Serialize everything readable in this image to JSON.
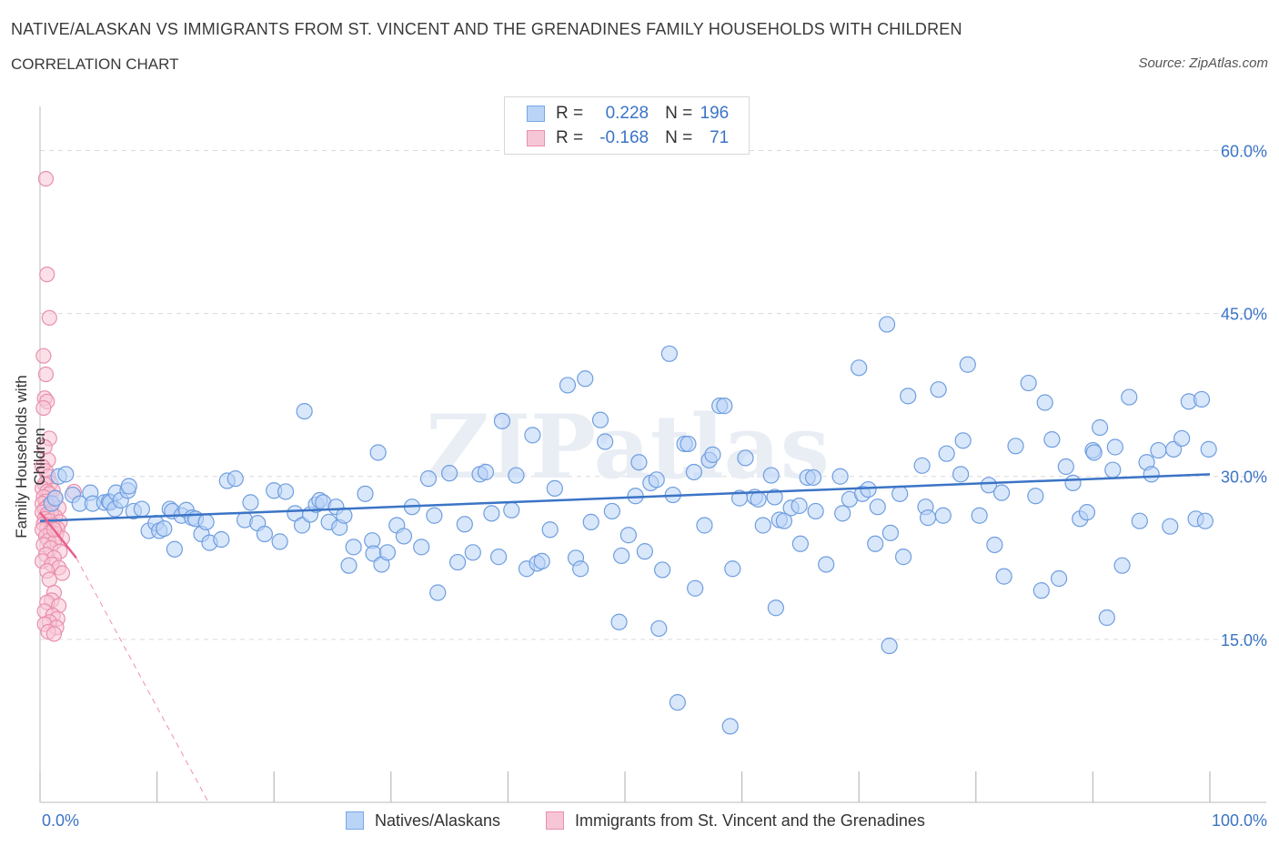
{
  "title": "NATIVE/ALASKAN VS IMMIGRANTS FROM ST. VINCENT AND THE GRENADINES FAMILY HOUSEHOLDS WITH CHILDREN",
  "subtitle": "CORRELATION CHART",
  "source": "Source: ZipAtlas.com",
  "watermark": "ZIPatlas",
  "legend_top": [
    {
      "r_label": "R =",
      "r_value": "0.228",
      "n_label": "N =",
      "n_value": "196",
      "color": "#b9d4f7",
      "border": "#7aa7e6"
    },
    {
      "r_label": "R =",
      "r_value": "-0.168",
      "n_label": "N =",
      "n_value": "71",
      "color": "#f7c6d6",
      "border": "#e98fae"
    }
  ],
  "legend_bottom": [
    "Natives/Alaskans",
    "Immigrants from St. Vincent and the Grenadines"
  ],
  "chart_data": {
    "type": "scatter",
    "ylabel": "Family Households with Children",
    "xlabel": "",
    "xlim": [
      0,
      100
    ],
    "ylim": [
      0,
      60
    ],
    "x_tick_labels": [
      "0.0%",
      "100.0%"
    ],
    "y_tick_labels": [
      "15.0%",
      "30.0%",
      "45.0%",
      "60.0%"
    ],
    "y_ticks": [
      15,
      30,
      45,
      60
    ],
    "colors": {
      "blue": "#3b74c6",
      "blue_fill": "#b9d4f7",
      "pink": "#e8608c",
      "pink_fill": "#f7c6d6",
      "grid": "#d9d9d9"
    },
    "series": [
      {
        "name": "Natives/Alaskans",
        "trend": {
          "x": [
            0,
            100
          ],
          "y": [
            25.9,
            30.2
          ]
        },
        "points": [
          [
            1,
            27.5
          ],
          [
            1.3,
            28
          ],
          [
            1.6,
            30
          ],
          [
            2.2,
            30.2
          ],
          [
            2.8,
            28.3
          ],
          [
            3.4,
            27.5
          ],
          [
            4.3,
            28.5
          ],
          [
            4.5,
            27.5
          ],
          [
            5.5,
            27.6
          ],
          [
            5.9,
            27.7
          ],
          [
            6,
            27.6
          ],
          [
            6.5,
            28.5
          ],
          [
            6.4,
            27
          ],
          [
            6.9,
            27.8
          ],
          [
            7.5,
            28.7
          ],
          [
            7.6,
            29.1
          ],
          [
            8,
            26.8
          ],
          [
            8.7,
            27
          ],
          [
            9.3,
            25
          ],
          [
            9.9,
            25.7
          ],
          [
            10.2,
            25
          ],
          [
            10.6,
            25.2
          ],
          [
            11.1,
            27
          ],
          [
            11.3,
            26.8
          ],
          [
            11.5,
            23.3
          ],
          [
            12.1,
            26.4
          ],
          [
            12.5,
            26.9
          ],
          [
            13,
            26.2
          ],
          [
            13.3,
            26.1
          ],
          [
            13.8,
            24.7
          ],
          [
            14.2,
            25.8
          ],
          [
            14.5,
            23.9
          ],
          [
            15.5,
            24.2
          ],
          [
            16,
            29.6
          ],
          [
            16.7,
            29.8
          ],
          [
            17.5,
            26
          ],
          [
            18,
            27.6
          ],
          [
            18.6,
            25.7
          ],
          [
            19.2,
            24.7
          ],
          [
            20,
            28.7
          ],
          [
            20.5,
            24
          ],
          [
            21,
            28.6
          ],
          [
            21.8,
            26.6
          ],
          [
            22.4,
            25.5
          ],
          [
            22.6,
            36
          ],
          [
            23.1,
            26.5
          ],
          [
            23.6,
            27.4
          ],
          [
            23.9,
            27.8
          ],
          [
            24.2,
            27.6
          ],
          [
            24.7,
            25.8
          ],
          [
            25.3,
            27.2
          ],
          [
            25.6,
            25.3
          ],
          [
            26,
            26.4
          ],
          [
            26.4,
            21.8
          ],
          [
            26.8,
            23.5
          ],
          [
            27.8,
            28.4
          ],
          [
            28.4,
            24.1
          ],
          [
            28.5,
            22.9
          ],
          [
            28.9,
            32.2
          ],
          [
            29.2,
            21.9
          ],
          [
            29.7,
            23
          ],
          [
            30.5,
            25.5
          ],
          [
            31.1,
            24.5
          ],
          [
            31.8,
            27.2
          ],
          [
            32.6,
            23.5
          ],
          [
            33.2,
            29.8
          ],
          [
            33.7,
            26.4
          ],
          [
            34,
            19.3
          ],
          [
            35,
            30.3
          ],
          [
            35.7,
            22.1
          ],
          [
            36.3,
            25.6
          ],
          [
            37,
            23
          ],
          [
            37.6,
            30.2
          ],
          [
            38.1,
            30.4
          ],
          [
            38.6,
            26.6
          ],
          [
            39.2,
            22.6
          ],
          [
            39.5,
            35.1
          ],
          [
            40.3,
            26.9
          ],
          [
            40.7,
            30.1
          ],
          [
            41.6,
            21.5
          ],
          [
            42.1,
            33.8
          ],
          [
            42.5,
            22
          ],
          [
            42.9,
            22.2
          ],
          [
            43.6,
            25.1
          ],
          [
            44,
            28.9
          ],
          [
            45.1,
            38.4
          ],
          [
            45.8,
            22.5
          ],
          [
            46.2,
            21.5
          ],
          [
            46.6,
            39
          ],
          [
            47.1,
            25.8
          ],
          [
            47.9,
            35.2
          ],
          [
            48.3,
            33.2
          ],
          [
            48.9,
            26.8
          ],
          [
            49.5,
            16.6
          ],
          [
            49.7,
            22.7
          ],
          [
            50.3,
            24.6
          ],
          [
            50.9,
            28.2
          ],
          [
            51.2,
            31.3
          ],
          [
            51.7,
            23.1
          ],
          [
            52.2,
            29.4
          ],
          [
            52.7,
            29.7
          ],
          [
            52.9,
            16
          ],
          [
            53.2,
            21.4
          ],
          [
            53.8,
            41.3
          ],
          [
            54.1,
            28.3
          ],
          [
            54.5,
            9.2
          ],
          [
            55.1,
            33
          ],
          [
            55.4,
            33
          ],
          [
            55.9,
            30.4
          ],
          [
            56,
            19.7
          ],
          [
            56.8,
            25.5
          ],
          [
            57.2,
            31.5
          ],
          [
            57.5,
            32
          ],
          [
            58.1,
            36.5
          ],
          [
            58.5,
            36.5
          ],
          [
            59,
            7
          ],
          [
            59.2,
            21.5
          ],
          [
            59.8,
            28
          ],
          [
            60.3,
            31.7
          ],
          [
            61.1,
            28.1
          ],
          [
            61.4,
            27.9
          ],
          [
            61.8,
            25.5
          ],
          [
            62.5,
            30.1
          ],
          [
            62.8,
            28.1
          ],
          [
            62.9,
            17.9
          ],
          [
            63.2,
            26
          ],
          [
            63.6,
            25.9
          ],
          [
            64.2,
            27.1
          ],
          [
            64.9,
            27.3
          ],
          [
            65,
            23.8
          ],
          [
            65.6,
            29.9
          ],
          [
            66.1,
            29.9
          ],
          [
            66.3,
            26.8
          ],
          [
            67.2,
            21.9
          ],
          [
            68.4,
            30
          ],
          [
            68.6,
            26.6
          ],
          [
            69.2,
            27.9
          ],
          [
            70,
            40
          ],
          [
            70.3,
            28.4
          ],
          [
            70.8,
            28.8
          ],
          [
            71.4,
            23.8
          ],
          [
            71.6,
            27.2
          ],
          [
            72.4,
            44
          ],
          [
            72.6,
            14.4
          ],
          [
            72.7,
            24.8
          ],
          [
            73.5,
            28.4
          ],
          [
            73.8,
            22.6
          ],
          [
            74.2,
            37.4
          ],
          [
            75.4,
            31
          ],
          [
            75.7,
            27.2
          ],
          [
            75.9,
            26.2
          ],
          [
            76.8,
            38
          ],
          [
            77.2,
            26.4
          ],
          [
            77.5,
            32.1
          ],
          [
            78.7,
            30.2
          ],
          [
            78.9,
            33.3
          ],
          [
            79.3,
            40.3
          ],
          [
            80.3,
            26.4
          ],
          [
            81.1,
            29.2
          ],
          [
            81.6,
            23.7
          ],
          [
            82.2,
            28.5
          ],
          [
            82.4,
            20.8
          ],
          [
            83.4,
            32.8
          ],
          [
            84.5,
            38.6
          ],
          [
            85.1,
            28.2
          ],
          [
            85.6,
            19.5
          ],
          [
            85.9,
            36.8
          ],
          [
            86.5,
            33.4
          ],
          [
            87.1,
            20.6
          ],
          [
            87.7,
            30.9
          ],
          [
            88.3,
            29.4
          ],
          [
            88.9,
            26.1
          ],
          [
            89.5,
            26.7
          ],
          [
            90,
            32.4
          ],
          [
            90.1,
            32.2
          ],
          [
            90.6,
            34.5
          ],
          [
            91.2,
            17
          ],
          [
            91.7,
            30.6
          ],
          [
            91.9,
            32.7
          ],
          [
            92.5,
            21.8
          ],
          [
            93.1,
            37.3
          ],
          [
            94,
            25.9
          ],
          [
            94.6,
            31.3
          ],
          [
            95,
            30.2
          ],
          [
            95.6,
            32.4
          ],
          [
            96.6,
            25.4
          ],
          [
            96.9,
            32.5
          ],
          [
            97.6,
            33.5
          ],
          [
            98.2,
            36.9
          ],
          [
            98.8,
            26.1
          ],
          [
            99.3,
            37.1
          ],
          [
            99.6,
            25.9
          ],
          [
            99.9,
            32.5
          ]
        ]
      },
      {
        "name": "Immigrants from St. Vincent and the Grenadines",
        "trend": {
          "x": [
            0,
            3.1
          ],
          "y": [
            26.7,
            22.5
          ],
          "dashed_to": [
            14.4,
            0
          ]
        },
        "points": [
          [
            0.5,
            57.4
          ],
          [
            0.6,
            48.6
          ],
          [
            0.8,
            44.6
          ],
          [
            0.3,
            41.1
          ],
          [
            0.5,
            39.4
          ],
          [
            0.4,
            37.2
          ],
          [
            0.6,
            36.9
          ],
          [
            0.3,
            36.3
          ],
          [
            0.8,
            33.5
          ],
          [
            0.4,
            32.7
          ],
          [
            0.7,
            31.5
          ],
          [
            0.2,
            30.9
          ],
          [
            0.5,
            30.5
          ],
          [
            0.7,
            30
          ],
          [
            0.9,
            29.4
          ],
          [
            0.4,
            29.3
          ],
          [
            0.2,
            28.9
          ],
          [
            1.1,
            28.7
          ],
          [
            0.6,
            28.6
          ],
          [
            0.8,
            28.4
          ],
          [
            0.3,
            28.1
          ],
          [
            1.3,
            28
          ],
          [
            0.5,
            27.7
          ],
          [
            0.2,
            27.5
          ],
          [
            0.7,
            27.3
          ],
          [
            1.6,
            27.1
          ],
          [
            0.4,
            27
          ],
          [
            0.9,
            26.8
          ],
          [
            0.2,
            26.7
          ],
          [
            1,
            26.6
          ],
          [
            0.6,
            26.5
          ],
          [
            1.3,
            26.3
          ],
          [
            0.4,
            26.1
          ],
          [
            0.8,
            25.9
          ],
          [
            1.7,
            25.8
          ],
          [
            0.3,
            25.6
          ],
          [
            1.1,
            25.5
          ],
          [
            0.6,
            25.3
          ],
          [
            1.5,
            25.2
          ],
          [
            0.2,
            25.1
          ],
          [
            0.9,
            24.9
          ],
          [
            1.4,
            24.7
          ],
          [
            0.5,
            24.5
          ],
          [
            1.9,
            24.3
          ],
          [
            0.7,
            24.1
          ],
          [
            1.2,
            23.9
          ],
          [
            0.3,
            23.7
          ],
          [
            0.9,
            23.4
          ],
          [
            1.7,
            23.1
          ],
          [
            0.5,
            22.8
          ],
          [
            1.2,
            22.5
          ],
          [
            0.2,
            22.2
          ],
          [
            1,
            21.9
          ],
          [
            1.6,
            21.6
          ],
          [
            0.6,
            21.3
          ],
          [
            1.9,
            21.1
          ],
          [
            0.8,
            20.5
          ],
          [
            1.2,
            19.3
          ],
          [
            1,
            18.6
          ],
          [
            0.6,
            18.4
          ],
          [
            1.6,
            18.1
          ],
          [
            0.4,
            17.6
          ],
          [
            1.1,
            17.2
          ],
          [
            1.5,
            16.9
          ],
          [
            0.8,
            16.6
          ],
          [
            0.4,
            16.4
          ],
          [
            1.4,
            16.1
          ],
          [
            0.7,
            15.7
          ],
          [
            1.2,
            15.5
          ],
          [
            2.9,
            28.6
          ],
          [
            1.2,
            25.1
          ]
        ]
      }
    ]
  }
}
